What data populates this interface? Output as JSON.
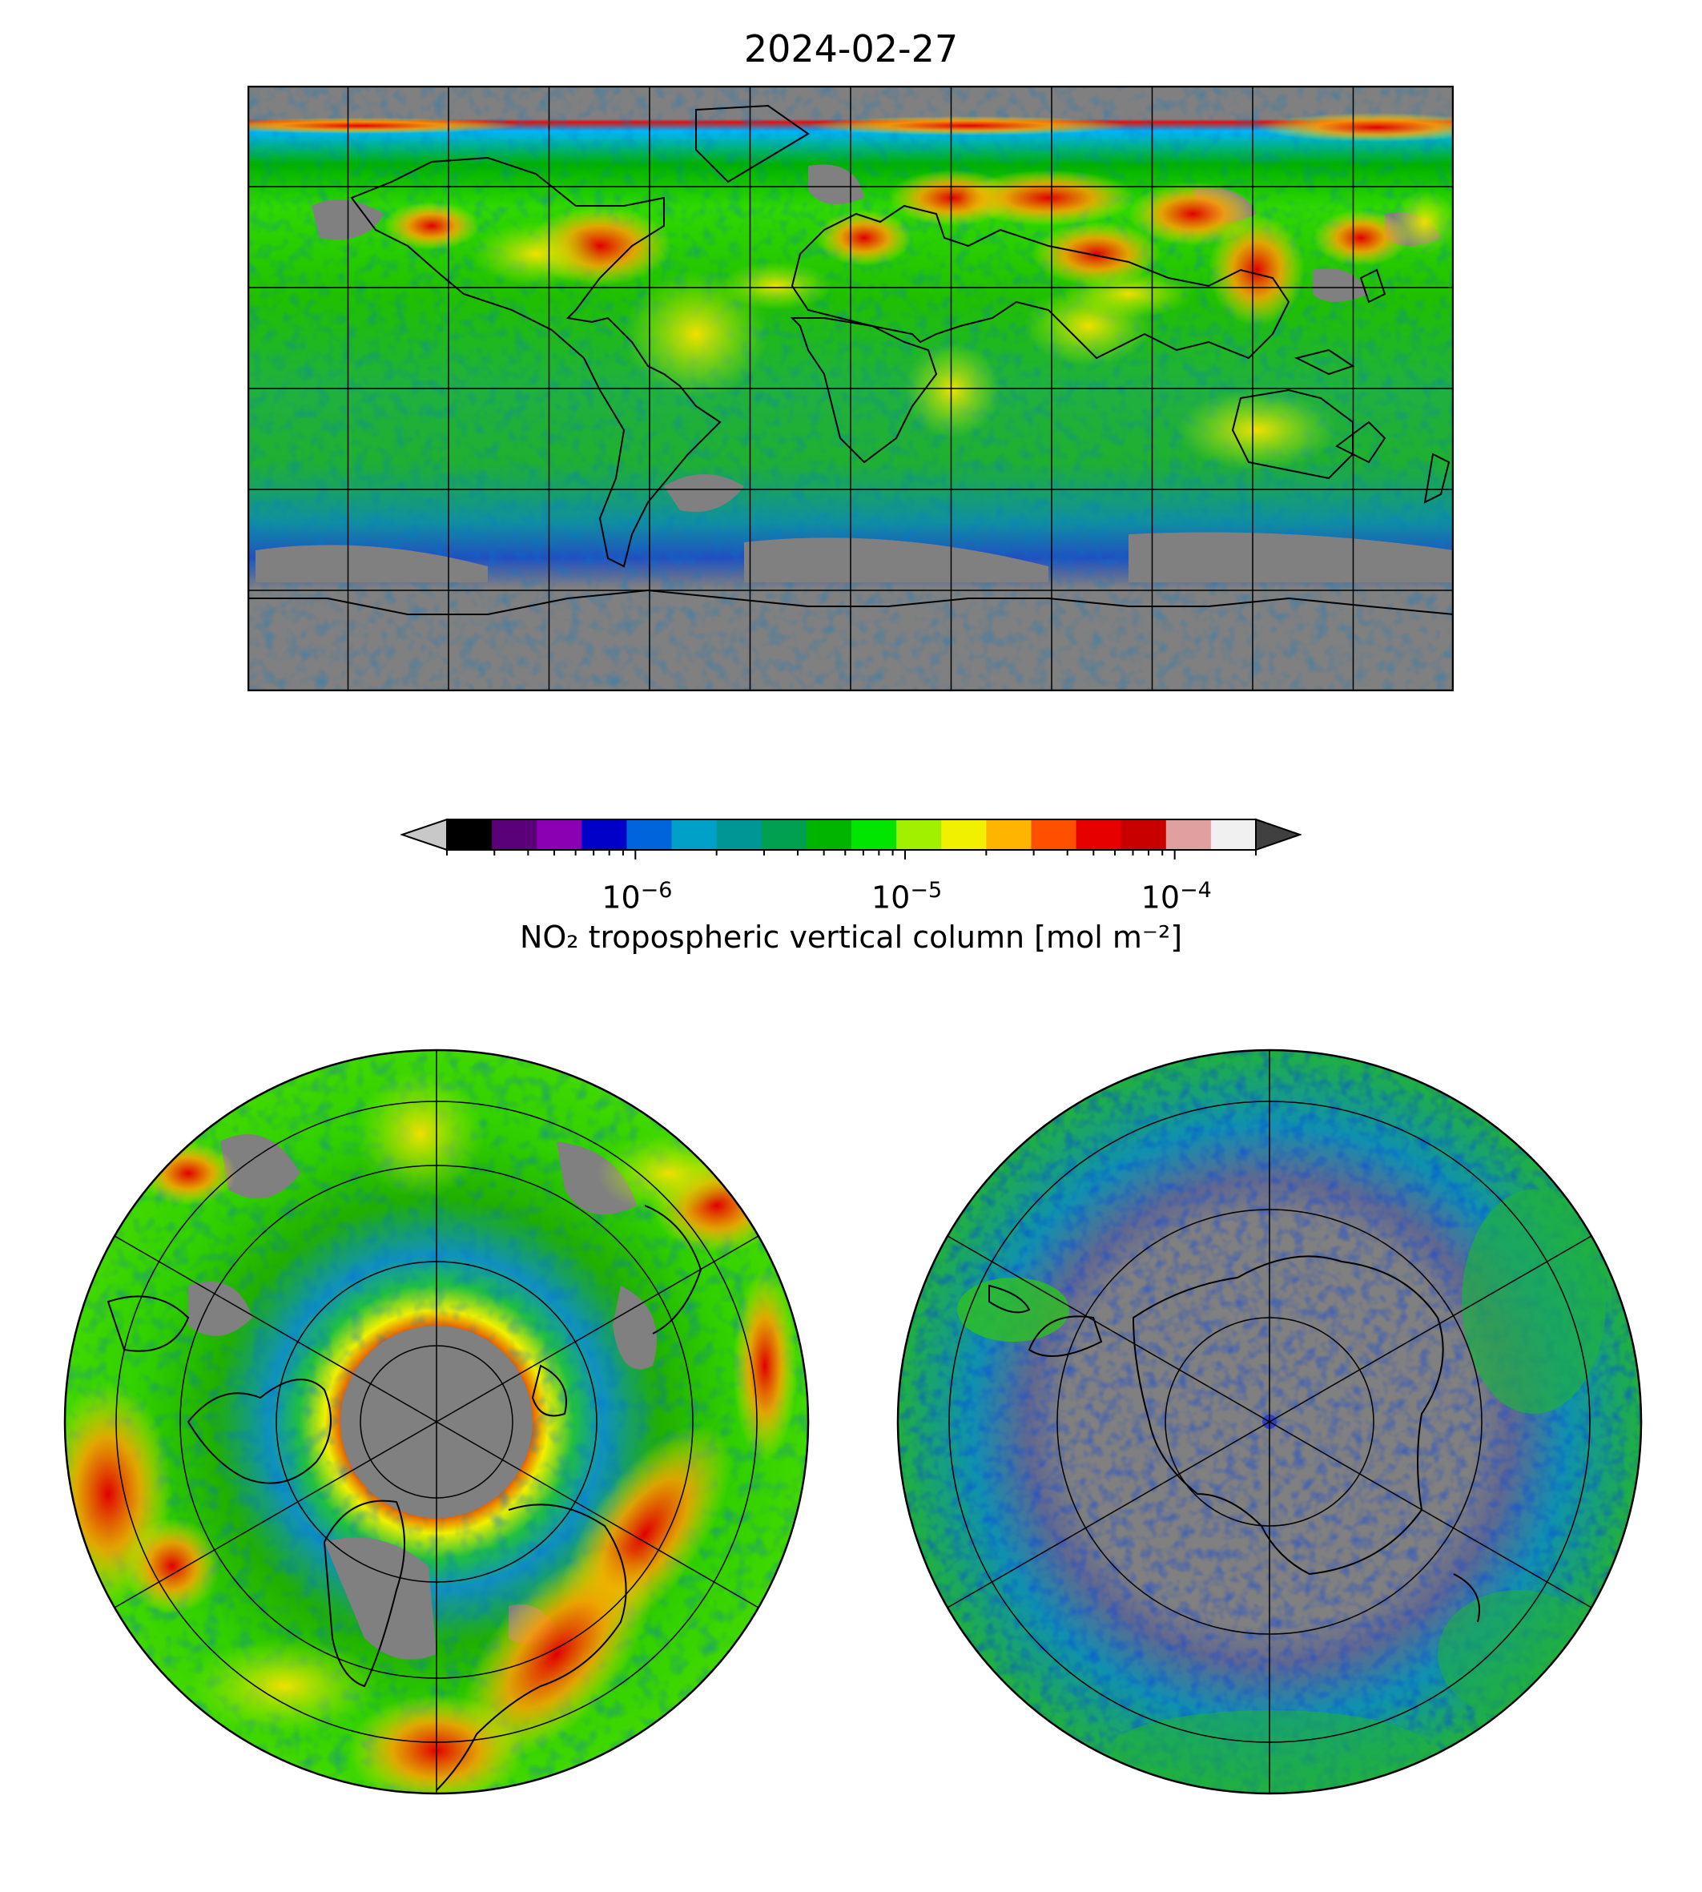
{
  "title": "2024-02-27",
  "colorbar": {
    "label": "NO₂ tropospheric vertical column [mol m⁻²]",
    "scale": "log",
    "range": [
      2e-07,
      0.0002
    ],
    "extend": "both",
    "ticks": [
      {
        "base": "10",
        "exp": "−6"
      },
      {
        "base": "10",
        "exp": "−5"
      },
      {
        "base": "10",
        "exp": "−4"
      }
    ],
    "colors": [
      "#000000",
      "#5a0078",
      "#8c00b4",
      "#0000c8",
      "#0064dc",
      "#00a0c8",
      "#009696",
      "#00a050",
      "#00b400",
      "#00e600",
      "#a0f000",
      "#f0f000",
      "#ffb400",
      "#ff5000",
      "#e60000",
      "#c80000",
      "#e0a0a0",
      "#f0f0f0"
    ],
    "under_color": "#c8c8c8",
    "over_color": "#404040"
  },
  "maps": {
    "global": {
      "projection": "plate-carree",
      "missing_color": "#808080"
    },
    "north": {
      "projection": "north-polar-stereographic"
    },
    "south": {
      "projection": "south-polar-stereographic"
    }
  }
}
